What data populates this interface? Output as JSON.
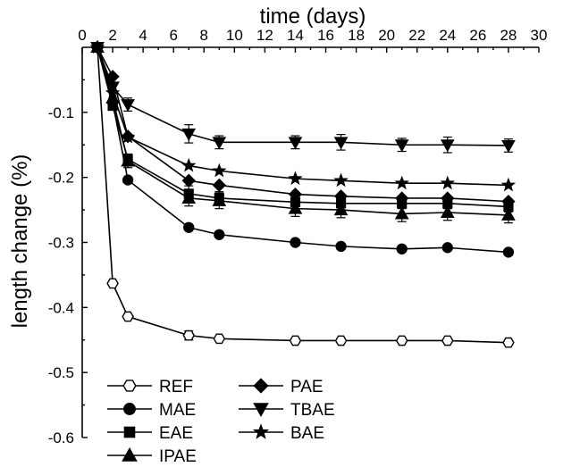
{
  "chart_data": {
    "type": "line",
    "xlabel": "time (days)",
    "ylabel": "length change  (%)",
    "xlim": [
      0,
      30
    ],
    "ylim": [
      -0.6,
      0
    ],
    "xticks": [
      0,
      2,
      4,
      6,
      8,
      10,
      12,
      14,
      16,
      18,
      20,
      22,
      24,
      26,
      28,
      30
    ],
    "yticks": [
      -0.1,
      -0.2,
      -0.3,
      -0.4,
      -0.5,
      -0.6
    ],
    "x_axis_position": "top",
    "legend_placement": "bottom-left",
    "grid": false,
    "x": [
      1,
      2,
      3,
      7,
      9,
      14,
      17,
      21,
      24,
      28
    ],
    "series": [
      {
        "name": "REF",
        "marker": "hexagon-open",
        "values": [
          0,
          -0.363,
          -0.414,
          -0.443,
          -0.448,
          -0.451,
          -0.451,
          -0.451,
          -0.451,
          -0.454
        ],
        "error": [
          0,
          0,
          0,
          0.007,
          0,
          0,
          0,
          0,
          0,
          0
        ]
      },
      {
        "name": "MAE",
        "marker": "circle",
        "values": [
          0,
          -0.085,
          -0.204,
          -0.277,
          -0.288,
          -0.3,
          -0.306,
          -0.31,
          -0.308,
          -0.315
        ],
        "error": [
          0,
          0,
          0,
          0,
          0,
          0,
          0,
          0,
          0,
          0
        ]
      },
      {
        "name": "EAE",
        "marker": "square",
        "values": [
          0,
          -0.09,
          -0.172,
          -0.225,
          -0.232,
          -0.238,
          -0.24,
          -0.24,
          -0.24,
          -0.245
        ],
        "error": [
          0,
          0,
          0.008,
          0.012,
          0.01,
          0.01,
          0.01,
          0.008,
          0.008,
          0.008
        ]
      },
      {
        "name": "IPAE",
        "marker": "triangle-up",
        "values": [
          0,
          -0.078,
          -0.175,
          -0.232,
          -0.236,
          -0.248,
          -0.25,
          -0.256,
          -0.254,
          -0.258
        ],
        "error": [
          0,
          0,
          0.01,
          0.012,
          0.012,
          0.012,
          0.012,
          0.012,
          0.012,
          0.012
        ]
      },
      {
        "name": "PAE",
        "marker": "diamond",
        "values": [
          0,
          -0.045,
          -0.137,
          -0.205,
          -0.212,
          -0.226,
          -0.229,
          -0.232,
          -0.232,
          -0.237
        ],
        "error": [
          0,
          0,
          0,
          0,
          0,
          0,
          0,
          0,
          0,
          0
        ]
      },
      {
        "name": "TBAE",
        "marker": "triangle-down",
        "values": [
          0,
          -0.061,
          -0.088,
          -0.133,
          -0.146,
          -0.146,
          -0.146,
          -0.15,
          -0.15,
          -0.151
        ],
        "error": [
          0,
          0,
          0.01,
          0.014,
          0.01,
          0.01,
          0.012,
          0.01,
          0.012,
          0.01
        ]
      },
      {
        "name": "BAE",
        "marker": "star",
        "values": [
          0,
          -0.07,
          -0.138,
          -0.182,
          -0.19,
          -0.202,
          -0.205,
          -0.209,
          -0.209,
          -0.212
        ],
        "error": [
          0,
          0,
          0,
          0,
          0,
          0,
          0,
          0,
          0,
          0
        ]
      }
    ],
    "legend_columns": [
      [
        "REF",
        "MAE",
        "EAE",
        "IPAE"
      ],
      [
        "PAE",
        "TBAE",
        "BAE"
      ]
    ]
  }
}
